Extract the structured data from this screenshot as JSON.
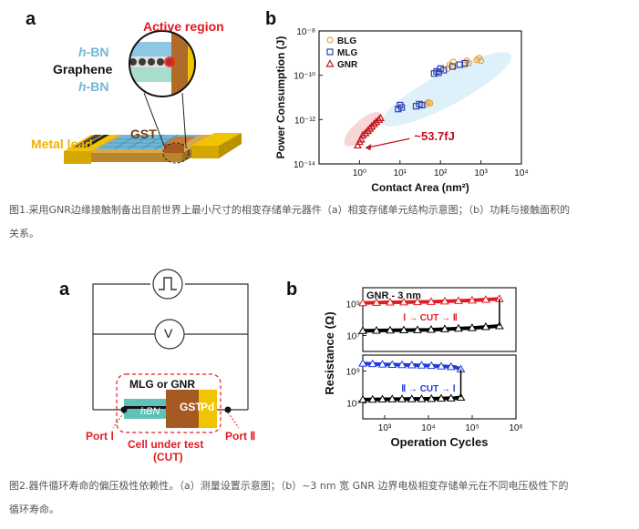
{
  "fig1": {
    "panel_a": {
      "letter": "a",
      "labels": {
        "active_region": "Active region",
        "hbn_top_i": "h",
        "hbn_top_rest": "-BN",
        "graphene": "Graphene",
        "hbn_bottom_i": "h",
        "hbn_bottom_rest": "-BN",
        "gst": "GST",
        "metal_lead": "Metal lead"
      }
    },
    "panel_b": {
      "letter": "b",
      "annotation": "~53.7fJ",
      "legend": [
        "BLG",
        "MLG",
        "GNR"
      ]
    },
    "caption_line1": "图1.采用GNR边缘接触制备出目前世界上最小尺寸的相变存储单元器件（a）相变存储单元结构示意图；（b）功耗与接触面积的",
    "caption_line2": "关系。"
  },
  "fig2": {
    "panel_a": {
      "letter": "a",
      "labels": {
        "mlg_or_gnr": "MLG or GNR",
        "hbn": "hBN",
        "gst": "GST",
        "pd": "Pd",
        "port1": "Port Ⅰ",
        "port2": "Port Ⅱ",
        "cut_line1": "Cell under test",
        "cut_line2": "(CUT)",
        "voltmeter": "V"
      }
    },
    "panel_b": {
      "letter": "b",
      "title": "GNR - 3 nm",
      "arrow_top": "Ⅰ → CUT → Ⅱ",
      "arrow_bottom": "Ⅱ → CUT → Ⅰ"
    },
    "caption_line1": "图2.器件循环寿命的偏压极性依赖性。（a）测量设置示意图；（b）~3 nm 宽 GNR 边界电极相变存储单元在不同电压极性下的",
    "caption_line2": "循环寿命。"
  },
  "chart_data": [
    {
      "type": "scatter",
      "xlabel": "Contact Area (nm²)",
      "ylabel": "Power Consumption (J)",
      "x_scale": "log",
      "y_scale": "log",
      "xlim": [
        0.1,
        10000
      ],
      "ylim": [
        1e-14,
        1e-08
      ],
      "x_ticks": [
        "10⁰",
        "10¹",
        "10²",
        "10³",
        "10⁴"
      ],
      "y_ticks": [
        "10⁻¹⁴",
        "10⁻¹²",
        "10⁻¹⁰",
        "10⁻⁸"
      ],
      "legend_position": "top-left",
      "series": [
        {
          "name": "BLG",
          "color": "#e8a23a",
          "marker": "circle",
          "x": [
            45,
            50,
            55,
            150,
            170,
            190,
            210,
            400,
            450,
            500,
            800,
            900,
            1000
          ],
          "y": [
            5e-12,
            6e-12,
            5.5e-12,
            2e-10,
            3e-10,
            2.5e-10,
            4e-10,
            3e-10,
            4.5e-10,
            3.5e-10,
            5e-10,
            6e-10,
            4.5e-10
          ]
        },
        {
          "name": "MLG",
          "color": "#2d3fb5",
          "marker": "square",
          "x": [
            9,
            10,
            11,
            25,
            30,
            35,
            70,
            80,
            90,
            100,
            120,
            200,
            300,
            400
          ],
          "y": [
            3e-12,
            4.5e-12,
            3.5e-12,
            4e-12,
            5e-12,
            4.5e-12,
            1.2e-10,
            1.5e-10,
            1.3e-10,
            2e-10,
            1.7e-10,
            2.5e-10,
            3e-10,
            3.5e-10
          ]
        },
        {
          "name": "GNR",
          "color": "#c0141e",
          "marker": "triangle",
          "x": [
            0.9,
            1.0,
            1.1,
            1.2,
            1.4,
            1.6,
            1.8,
            2.0,
            2.3,
            2.6,
            3.0,
            3.3
          ],
          "y": [
            7e-14,
            1e-13,
            1.3e-13,
            2e-13,
            2.5e-13,
            3.2e-13,
            4e-13,
            5e-13,
            6.5e-13,
            8e-13,
            1e-12,
            1.2e-12
          ]
        }
      ],
      "annotation": {
        "text": "~53.7fJ",
        "x": 1.0,
        "y": 5.37e-14
      }
    },
    {
      "type": "line",
      "ylabel": "Resistance (Ω)",
      "xlabel": "Operation Cycles",
      "x_scale": "log",
      "y_scale": "log",
      "xlim": [
        316,
        1000000
      ],
      "ylim": [
        1000000.0,
        10000000000.0
      ],
      "x_ticks": [
        "10³",
        "10⁴",
        "10⁵",
        "10⁶"
      ],
      "y_ticks": [
        "10⁷",
        "10⁹"
      ],
      "subplots": [
        {
          "arrow": "Ⅰ → CUT → Ⅱ",
          "series": [
            {
              "color": "#e11b22",
              "state": "high",
              "x": [
                316,
                1000,
                10000,
                100000,
                420000
              ],
              "y": [
                1100000000.0,
                1200000000.0,
                1300000000.0,
                1600000000.0,
                2000000000.0
              ]
            },
            {
              "color": "#000000",
              "state": "low",
              "x": [
                316,
                1000,
                10000,
                100000,
                420000
              ],
              "y": [
                20000000.0,
                21000000.0,
                23000000.0,
                30000000.0,
                40000000.0
              ]
            }
          ]
        },
        {
          "arrow": "Ⅱ → CUT → Ⅰ",
          "series": [
            {
              "color": "#1f3cdc",
              "state": "high",
              "x": [
                316,
                1000,
                10000,
                40000,
                55000
              ],
              "y": [
                3000000000.0,
                2600000000.0,
                2200000000.0,
                1800000000.0,
                1300000000.0
              ]
            },
            {
              "color": "#000000",
              "state": "low",
              "x": [
                316,
                1000,
                10000,
                40000,
                55000
              ],
              "y": [
                16000000.0,
                17000000.0,
                18000000.0,
                20000000.0,
                22000000.0
              ]
            }
          ]
        }
      ]
    }
  ]
}
